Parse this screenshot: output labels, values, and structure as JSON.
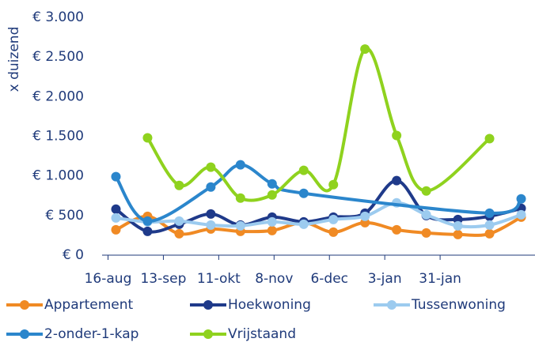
{
  "chart_data": {
    "type": "line",
    "y_label": "x duizend",
    "xlim": [
      -3,
      216
    ],
    "xticks": [
      {
        "value": 0,
        "label": "16-aug"
      },
      {
        "value": 28,
        "label": "13-sep"
      },
      {
        "value": 56,
        "label": "11-okt"
      },
      {
        "value": 84,
        "label": "8-nov"
      },
      {
        "value": 112,
        "label": "6-dec"
      },
      {
        "value": 140,
        "label": "3-jan"
      },
      {
        "value": 168,
        "label": "31-jan"
      }
    ],
    "ylim": [
      0,
      3000
    ],
    "yticks": [
      {
        "value": 0,
        "label": "€ 0"
      },
      {
        "value": 500,
        "label": "€ 500"
      },
      {
        "value": 1000,
        "label": "€ 1.000"
      },
      {
        "value": 1500,
        "label": "€ 1.500"
      },
      {
        "value": 2000,
        "label": "€ 2.000"
      },
      {
        "value": 2500,
        "label": "€ 2.500"
      },
      {
        "value": 3000,
        "label": "€ 3.000"
      }
    ],
    "grid": false,
    "legend": "bottom",
    "series": [
      {
        "name": "Appartement",
        "color": "#f08a24",
        "x": [
          4,
          20,
          36,
          52,
          67,
          83,
          99,
          114,
          130,
          146,
          161,
          177,
          193,
          209
        ],
        "values": [
          320,
          490,
          270,
          330,
          300,
          310,
          410,
          290,
          410,
          320,
          280,
          260,
          270,
          480
        ]
      },
      {
        "name": "Hoekwoning",
        "color": "#1f3a8a",
        "x": [
          4,
          20,
          36,
          52,
          67,
          83,
          99,
          114,
          130,
          146,
          161,
          177,
          193,
          209
        ],
        "values": [
          580,
          300,
          390,
          520,
          380,
          480,
          420,
          480,
          530,
          940,
          500,
          450,
          490,
          590
        ]
      },
      {
        "name": "Tussenwoning",
        "color": "#9ccbef",
        "x": [
          4,
          20,
          36,
          52,
          67,
          83,
          99,
          114,
          130,
          146,
          161,
          177,
          193,
          209
        ],
        "values": [
          470,
          420,
          430,
          380,
          370,
          420,
          390,
          450,
          490,
          660,
          510,
          370,
          380,
          510
        ]
      },
      {
        "name": "2-onder-1-kap",
        "color": "#2b86cc",
        "x": [
          4,
          20,
          52,
          67,
          83,
          99,
          193,
          209
        ],
        "values": [
          990,
          430,
          860,
          1140,
          900,
          780,
          530,
          710
        ]
      },
      {
        "name": "Vrijstaand",
        "color": "#8fd21e",
        "x": [
          20,
          36,
          52,
          67,
          83,
          99,
          114,
          130,
          146,
          161,
          193
        ],
        "values": [
          1480,
          880,
          1110,
          720,
          760,
          1070,
          890,
          2600,
          1510,
          810,
          1470
        ]
      }
    ]
  }
}
